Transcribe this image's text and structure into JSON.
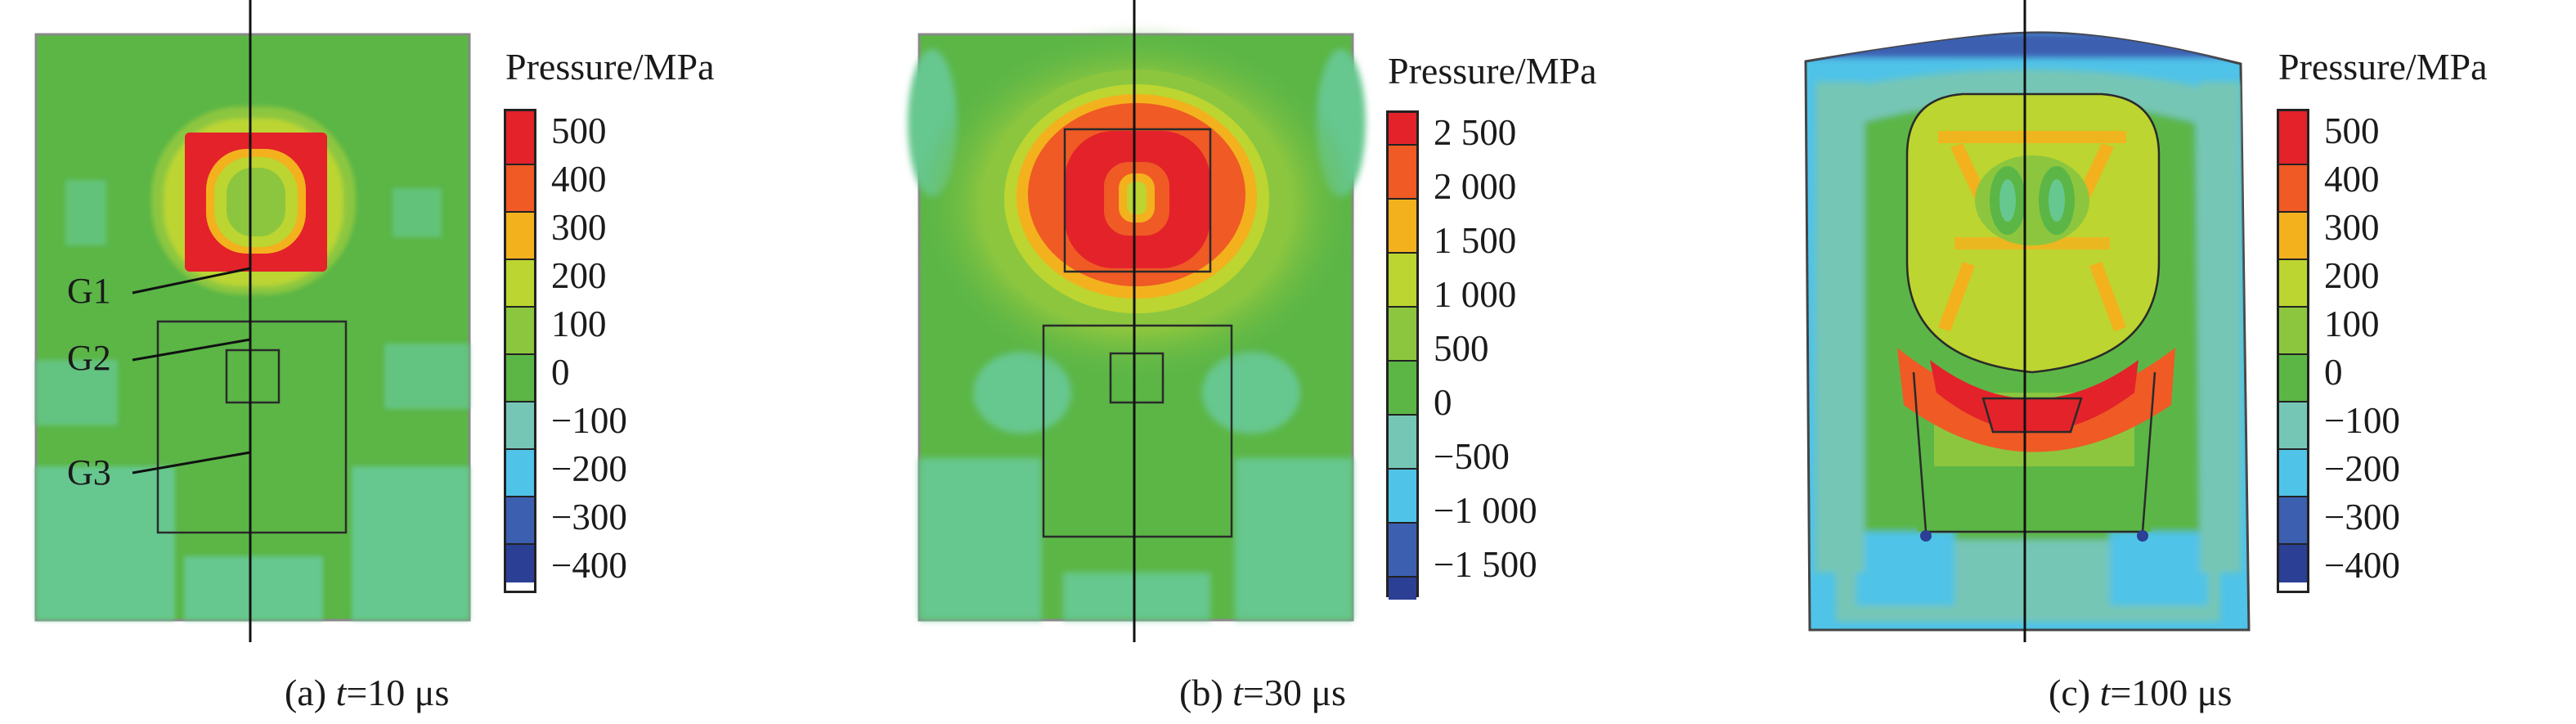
{
  "panels": [
    {
      "caption_prefix": "(a) ",
      "caption_var": "t",
      "caption_value": "=10 μs",
      "legend_title": "Pressure/MPa",
      "legend_ticks": [
        "500",
        "400",
        "300",
        "200",
        "100",
        "0",
        "−100",
        "−200",
        "−300",
        "−400"
      ],
      "labels": [
        "G1",
        "G2",
        "G3"
      ]
    },
    {
      "caption_prefix": "(b) ",
      "caption_var": "t",
      "caption_value": "=30 μs",
      "legend_title": "Pressure/MPa",
      "legend_ticks": [
        "2 500",
        "2 000",
        "1 500",
        "1 000",
        "500",
        "0",
        "−500",
        "−1 000",
        "−1 500"
      ]
    },
    {
      "caption_prefix": "(c) ",
      "caption_var": "t",
      "caption_value": "=100 μs",
      "legend_title": "Pressure/MPa",
      "legend_ticks": [
        "500",
        "400",
        "300",
        "200",
        "100",
        "0",
        "−100",
        "−200",
        "−300",
        "−400"
      ]
    }
  ],
  "colors": {
    "red": "#e3222a",
    "orange_red": "#ef5a25",
    "orange": "#f3b11e",
    "yellow_green": "#bcd530",
    "light_green": "#8cc63f",
    "green": "#5bb646",
    "sea_green": "#66c78f",
    "teal": "#76c6b6",
    "cyan": "#4fc3e8",
    "blue": "#3d5fb0",
    "navy": "#2b3f94"
  }
}
